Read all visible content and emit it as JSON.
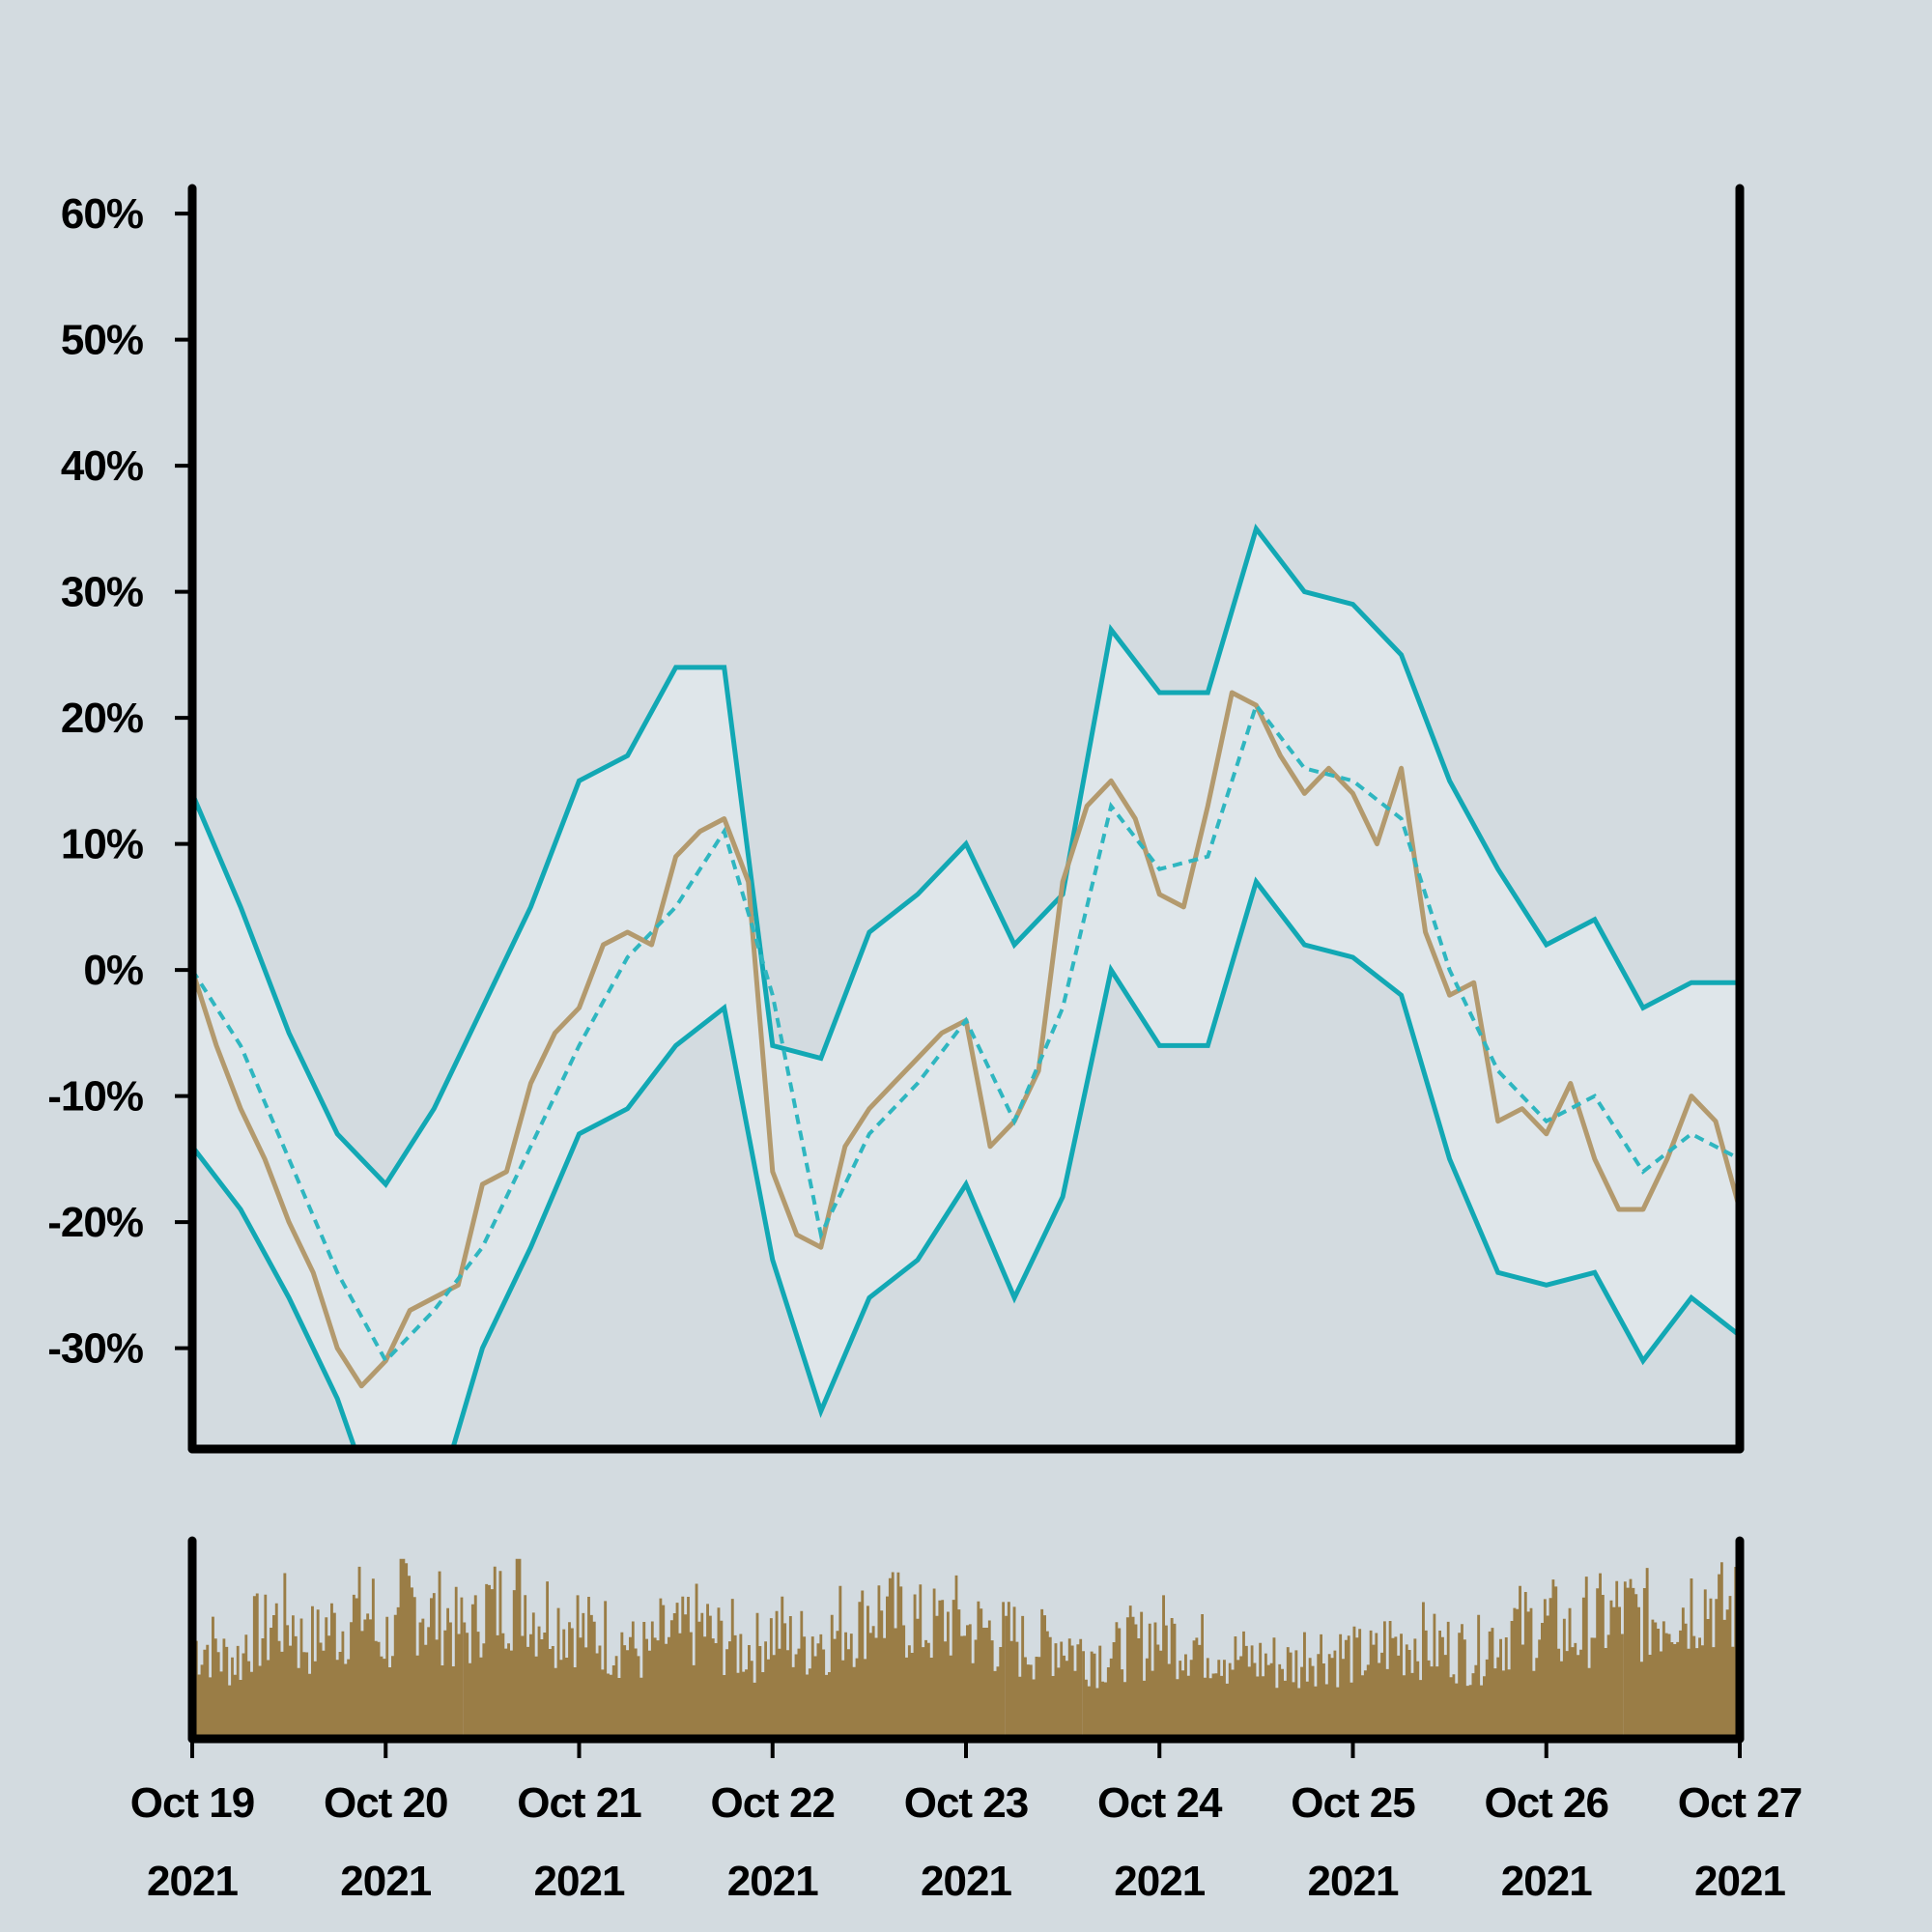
{
  "chart_data": {
    "type": "line",
    "title": "",
    "xlabel": "",
    "ylabel": "",
    "x_tick_labels": [
      {
        "date": "2021-10-19",
        "line1": "Oct 19",
        "line2": "2021"
      },
      {
        "date": "2021-10-20",
        "line1": "Oct 20",
        "line2": "2021"
      },
      {
        "date": "2021-10-21",
        "line1": "Oct 21",
        "line2": "2021"
      },
      {
        "date": "2021-10-22",
        "line1": "Oct 22",
        "line2": "2021"
      },
      {
        "date": "2021-10-23",
        "line1": "Oct 23",
        "line2": "2021"
      },
      {
        "date": "2021-10-24",
        "line1": "Oct 24",
        "line2": "2021"
      },
      {
        "date": "2021-10-25",
        "line1": "Oct 25",
        "line2": "2021"
      },
      {
        "date": "2021-10-26",
        "line1": "Oct 26",
        "line2": "2021"
      },
      {
        "date": "2021-10-27",
        "line1": "Oct 27",
        "line2": "2021"
      }
    ],
    "y_tick_labels": [
      "-30%",
      "-20%",
      "-10%",
      "0%",
      "10%",
      "20%",
      "30%",
      "40%",
      "50%",
      "60%"
    ],
    "y_ticks": [
      -30,
      -20,
      -10,
      0,
      10,
      20,
      30,
      40,
      50,
      60
    ],
    "ylim": [
      -38,
      62
    ],
    "xlim": [
      "2021-10-19 00:00",
      "2021-10-27 00:00"
    ],
    "grid": false,
    "legend": "none",
    "colors": {
      "price": "#b39a6e",
      "band": "#12a8b4",
      "band_fill": "#dfe6ea",
      "moving_average": "#2fb6c0",
      "volume": "#9a7d46",
      "background": "#d3dbe0",
      "axis": "#000000"
    },
    "series": [
      {
        "role": "price",
        "style": "solid",
        "points": [
          [
            "2021-10-19 00:00",
            0
          ],
          [
            "2021-10-19 03:00",
            -6
          ],
          [
            "2021-10-19 06:00",
            -11
          ],
          [
            "2021-10-19 09:00",
            -15
          ],
          [
            "2021-10-19 12:00",
            -20
          ],
          [
            "2021-10-19 15:00",
            -24
          ],
          [
            "2021-10-19 18:00",
            -30
          ],
          [
            "2021-10-19 21:00",
            -33
          ],
          [
            "2021-10-20 00:00",
            -31
          ],
          [
            "2021-10-20 03:00",
            -27
          ],
          [
            "2021-10-20 06:00",
            -26
          ],
          [
            "2021-10-20 09:00",
            -25
          ],
          [
            "2021-10-20 12:00",
            -17
          ],
          [
            "2021-10-20 15:00",
            -16
          ],
          [
            "2021-10-20 18:00",
            -9
          ],
          [
            "2021-10-20 21:00",
            -5
          ],
          [
            "2021-10-21 00:00",
            -3
          ],
          [
            "2021-10-21 03:00",
            2
          ],
          [
            "2021-10-21 06:00",
            3
          ],
          [
            "2021-10-21 09:00",
            2
          ],
          [
            "2021-10-21 12:00",
            9
          ],
          [
            "2021-10-21 15:00",
            11
          ],
          [
            "2021-10-21 18:00",
            12
          ],
          [
            "2021-10-21 21:00",
            7
          ],
          [
            "2021-10-22 00:00",
            -16
          ],
          [
            "2021-10-22 03:00",
            -21
          ],
          [
            "2021-10-22 06:00",
            -22
          ],
          [
            "2021-10-22 09:00",
            -14
          ],
          [
            "2021-10-22 12:00",
            -11
          ],
          [
            "2021-10-22 15:00",
            -9
          ],
          [
            "2021-10-22 18:00",
            -7
          ],
          [
            "2021-10-22 21:00",
            -5
          ],
          [
            "2021-10-23 00:00",
            -4
          ],
          [
            "2021-10-23 03:00",
            -14
          ],
          [
            "2021-10-23 06:00",
            -12
          ],
          [
            "2021-10-23 09:00",
            -8
          ],
          [
            "2021-10-23 12:00",
            7
          ],
          [
            "2021-10-23 15:00",
            13
          ],
          [
            "2021-10-23 18:00",
            15
          ],
          [
            "2021-10-23 21:00",
            12
          ],
          [
            "2021-10-24 00:00",
            6
          ],
          [
            "2021-10-24 03:00",
            5
          ],
          [
            "2021-10-24 06:00",
            13
          ],
          [
            "2021-10-24 09:00",
            22
          ],
          [
            "2021-10-24 12:00",
            21
          ],
          [
            "2021-10-24 15:00",
            17
          ],
          [
            "2021-10-24 18:00",
            14
          ],
          [
            "2021-10-24 21:00",
            16
          ],
          [
            "2021-10-25 00:00",
            14
          ],
          [
            "2021-10-25 03:00",
            10
          ],
          [
            "2021-10-25 06:00",
            16
          ],
          [
            "2021-10-25 09:00",
            3
          ],
          [
            "2021-10-25 12:00",
            -2
          ],
          [
            "2021-10-25 15:00",
            -1
          ],
          [
            "2021-10-25 18:00",
            -12
          ],
          [
            "2021-10-25 21:00",
            -11
          ],
          [
            "2021-10-26 00:00",
            -13
          ],
          [
            "2021-10-26 03:00",
            -9
          ],
          [
            "2021-10-26 06:00",
            -15
          ],
          [
            "2021-10-26 09:00",
            -19
          ],
          [
            "2021-10-26 12:00",
            -19
          ],
          [
            "2021-10-26 15:00",
            -15
          ],
          [
            "2021-10-26 18:00",
            -10
          ],
          [
            "2021-10-26 21:00",
            -12
          ],
          [
            "2021-10-27 00:00",
            -19
          ]
        ]
      },
      {
        "role": "moving_average",
        "style": "dashed",
        "points": [
          [
            "2021-10-19 00:00",
            0
          ],
          [
            "2021-10-19 06:00",
            -6
          ],
          [
            "2021-10-19 12:00",
            -15
          ],
          [
            "2021-10-19 18:00",
            -24
          ],
          [
            "2021-10-20 00:00",
            -31
          ],
          [
            "2021-10-20 06:00",
            -27
          ],
          [
            "2021-10-20 12:00",
            -22
          ],
          [
            "2021-10-20 18:00",
            -14
          ],
          [
            "2021-10-21 00:00",
            -6
          ],
          [
            "2021-10-21 06:00",
            1
          ],
          [
            "2021-10-21 12:00",
            5
          ],
          [
            "2021-10-21 18:00",
            11
          ],
          [
            "2021-10-22 00:00",
            -2
          ],
          [
            "2021-10-22 06:00",
            -21
          ],
          [
            "2021-10-22 12:00",
            -13
          ],
          [
            "2021-10-22 18:00",
            -9
          ],
          [
            "2021-10-23 00:00",
            -4
          ],
          [
            "2021-10-23 06:00",
            -12
          ],
          [
            "2021-10-23 12:00",
            -3
          ],
          [
            "2021-10-23 18:00",
            13
          ],
          [
            "2021-10-24 00:00",
            8
          ],
          [
            "2021-10-24 06:00",
            9
          ],
          [
            "2021-10-24 12:00",
            21
          ],
          [
            "2021-10-24 18:00",
            16
          ],
          [
            "2021-10-25 00:00",
            15
          ],
          [
            "2021-10-25 06:00",
            12
          ],
          [
            "2021-10-25 12:00",
            0
          ],
          [
            "2021-10-25 18:00",
            -8
          ],
          [
            "2021-10-26 00:00",
            -12
          ],
          [
            "2021-10-26 06:00",
            -10
          ],
          [
            "2021-10-26 12:00",
            -16
          ],
          [
            "2021-10-26 18:00",
            -13
          ],
          [
            "2021-10-27 00:00",
            -15
          ]
        ]
      },
      {
        "role": "upper_band",
        "style": "solid",
        "points": [
          [
            "2021-10-19 00:00",
            14
          ],
          [
            "2021-10-19 06:00",
            5
          ],
          [
            "2021-10-19 12:00",
            -5
          ],
          [
            "2021-10-19 18:00",
            -13
          ],
          [
            "2021-10-20 00:00",
            -17
          ],
          [
            "2021-10-20 06:00",
            -11
          ],
          [
            "2021-10-20 12:00",
            -3
          ],
          [
            "2021-10-20 18:00",
            5
          ],
          [
            "2021-10-21 00:00",
            15
          ],
          [
            "2021-10-21 06:00",
            17
          ],
          [
            "2021-10-21 12:00",
            24
          ],
          [
            "2021-10-21 18:00",
            24
          ],
          [
            "2021-10-22 00:00",
            -6
          ],
          [
            "2021-10-22 06:00",
            -7
          ],
          [
            "2021-10-22 12:00",
            3
          ],
          [
            "2021-10-22 18:00",
            6
          ],
          [
            "2021-10-23 00:00",
            10
          ],
          [
            "2021-10-23 06:00",
            2
          ],
          [
            "2021-10-23 12:00",
            6
          ],
          [
            "2021-10-23 18:00",
            27
          ],
          [
            "2021-10-24 00:00",
            22
          ],
          [
            "2021-10-24 06:00",
            22
          ],
          [
            "2021-10-24 12:00",
            35
          ],
          [
            "2021-10-24 18:00",
            30
          ],
          [
            "2021-10-25 00:00",
            29
          ],
          [
            "2021-10-25 06:00",
            25
          ],
          [
            "2021-10-25 12:00",
            15
          ],
          [
            "2021-10-25 18:00",
            8
          ],
          [
            "2021-10-26 00:00",
            2
          ],
          [
            "2021-10-26 06:00",
            4
          ],
          [
            "2021-10-26 12:00",
            -3
          ],
          [
            "2021-10-26 18:00",
            -1
          ],
          [
            "2021-10-27 00:00",
            -1
          ]
        ]
      },
      {
        "role": "lower_band",
        "style": "solid",
        "points": [
          [
            "2021-10-19 00:00",
            -14
          ],
          [
            "2021-10-19 06:00",
            -19
          ],
          [
            "2021-10-19 12:00",
            -26
          ],
          [
            "2021-10-19 18:00",
            -34
          ],
          [
            "2021-10-20 00:00",
            -45
          ],
          [
            "2021-10-20 06:00",
            -43
          ],
          [
            "2021-10-20 12:00",
            -30
          ],
          [
            "2021-10-20 18:00",
            -22
          ],
          [
            "2021-10-21 00:00",
            -13
          ],
          [
            "2021-10-21 06:00",
            -11
          ],
          [
            "2021-10-21 12:00",
            -6
          ],
          [
            "2021-10-21 18:00",
            -3
          ],
          [
            "2021-10-22 00:00",
            -23
          ],
          [
            "2021-10-22 06:00",
            -35
          ],
          [
            "2021-10-22 12:00",
            -26
          ],
          [
            "2021-10-22 18:00",
            -23
          ],
          [
            "2021-10-23 00:00",
            -17
          ],
          [
            "2021-10-23 06:00",
            -26
          ],
          [
            "2021-10-23 12:00",
            -18
          ],
          [
            "2021-10-23 18:00",
            0
          ],
          [
            "2021-10-24 00:00",
            -6
          ],
          [
            "2021-10-24 06:00",
            -6
          ],
          [
            "2021-10-24 12:00",
            7
          ],
          [
            "2021-10-24 18:00",
            2
          ],
          [
            "2021-10-25 00:00",
            1
          ],
          [
            "2021-10-25 06:00",
            -2
          ],
          [
            "2021-10-25 12:00",
            -15
          ],
          [
            "2021-10-25 18:00",
            -24
          ],
          [
            "2021-10-26 00:00",
            -25
          ],
          [
            "2021-10-26 06:00",
            -24
          ],
          [
            "2021-10-26 12:00",
            -31
          ],
          [
            "2021-10-26 18:00",
            -26
          ],
          [
            "2021-10-27 00:00",
            -29
          ]
        ]
      }
    ],
    "volume": {
      "note_relative": true,
      "values": [
        0.55,
        0.48,
        0.62,
        0.7,
        0.58,
        0.66,
        0.74,
        0.6,
        0.8,
        0.72,
        0.64,
        0.78,
        0.85,
        0.75,
        0.7,
        0.62,
        0.58,
        0.52,
        0.6,
        0.66,
        0.59,
        0.54,
        0.63,
        0.57,
        0.61,
        0.68,
        0.76,
        0.72,
        0.66,
        0.7,
        0.64,
        0.6,
        0.55,
        0.58,
        0.52,
        0.5,
        0.56,
        0.62,
        0.58,
        0.54,
        0.48,
        0.46,
        0.44,
        0.52,
        0.5,
        0.48,
        0.56,
        0.58,
        0.54,
        0.52,
        0.6,
        0.66,
        0.68,
        0.62,
        0.7,
        0.74,
        0.72,
        0.78,
        0.82,
        0.76
      ]
    }
  }
}
